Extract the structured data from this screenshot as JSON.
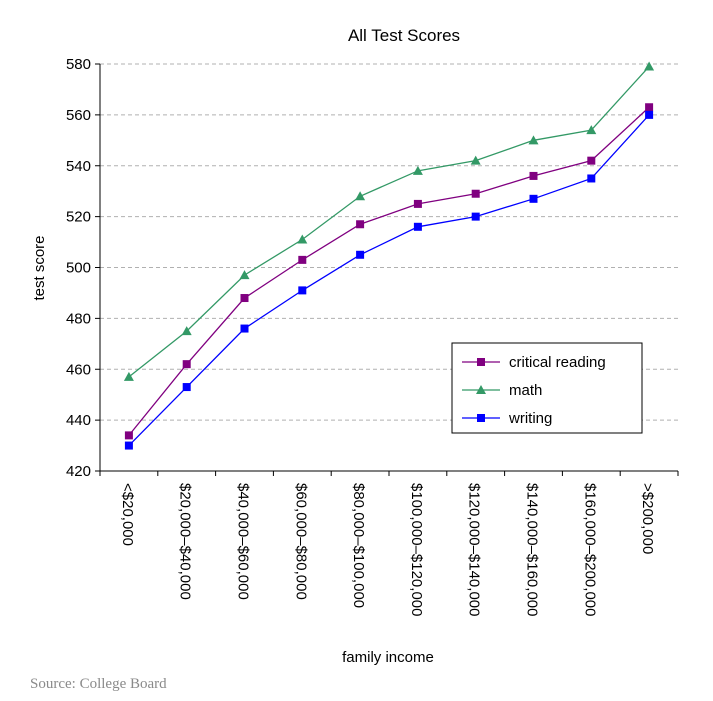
{
  "chart_data": {
    "type": "line",
    "title": "All Test Scores",
    "xlabel": "family income",
    "ylabel": "test score",
    "ylim": [
      420,
      580
    ],
    "yticks": [
      420,
      440,
      460,
      480,
      500,
      520,
      540,
      560,
      580
    ],
    "grid": true,
    "legend_position": "lower-right",
    "categories": [
      "<$20,000",
      "$20,000–$40,000",
      "$40,000–$60,000",
      "$60,000–$80,000",
      "$80,000–$100,000",
      "$100,000–$120,000",
      "$120,000–$140,000",
      "$140,000–$160,000",
      "$160,000–$200,000",
      ">$200,000"
    ],
    "series": [
      {
        "name": "critical reading",
        "color": "#800080",
        "marker": "square",
        "values": [
          434,
          462,
          488,
          503,
          517,
          525,
          529,
          536,
          542,
          563
        ]
      },
      {
        "name": "math",
        "color": "#339966",
        "marker": "triangle",
        "values": [
          457,
          475,
          497,
          511,
          528,
          538,
          542,
          550,
          554,
          579
        ]
      },
      {
        "name": "writing",
        "color": "#0000ff",
        "marker": "square",
        "values": [
          430,
          453,
          476,
          491,
          505,
          516,
          520,
          527,
          535,
          560
        ]
      }
    ]
  },
  "source": "Source: College Board"
}
